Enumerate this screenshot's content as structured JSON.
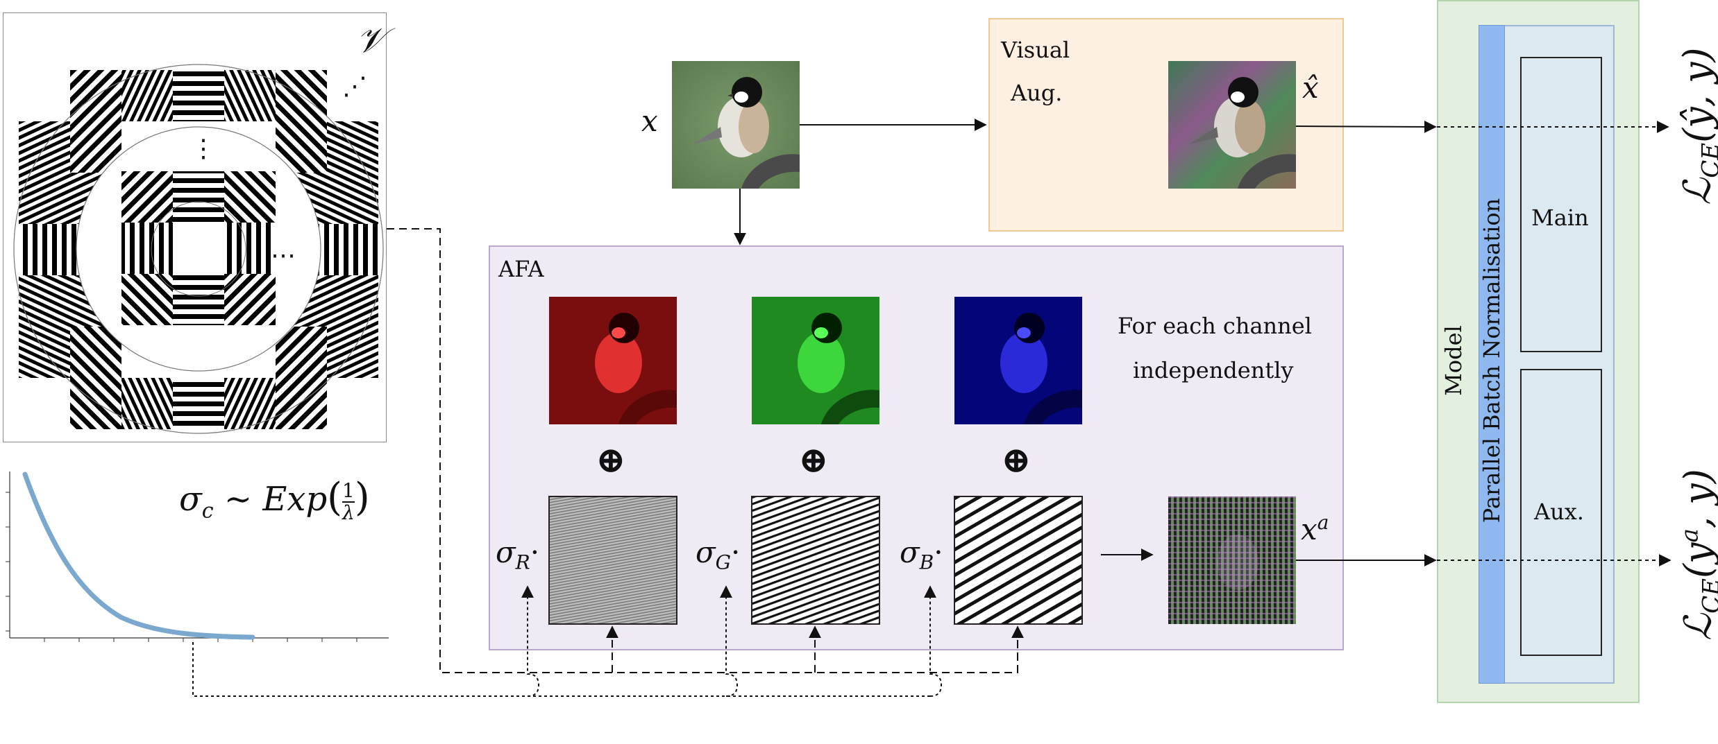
{
  "filter_bank": {
    "symbol": "𝒱",
    "dots_right": "⋯",
    "dots_top": "⋮",
    "dots_corner": "⋰"
  },
  "distribution": {
    "formula_lhs": "σ",
    "formula_sub": "c",
    "formula_tilde": "∼",
    "formula_exp": "Exp",
    "formula_frac_num": "1",
    "formula_frac_den": "λ"
  },
  "input": {
    "label": "x"
  },
  "visual_aug": {
    "title_line1": "Visual",
    "title_line2": "Aug.",
    "output_label": "x̂"
  },
  "afa": {
    "title": "AFA",
    "note_line1": "For each channel",
    "note_line2": "independently",
    "plus_symbol": "⊕",
    "sigma_r": "σ",
    "sub_r": "R",
    "sigma_g": "σ",
    "sub_g": "G",
    "sigma_b": "σ",
    "sub_b": "B",
    "dot": "·",
    "output_label": "x",
    "output_sup": "a"
  },
  "model": {
    "title": "Model",
    "pbn_label": "Parallel Batch Normalisation",
    "main_label": "Main",
    "aux_label": "Aux."
  },
  "losses": {
    "loss_top": "ℒ",
    "loss_top_sub": "CE",
    "loss_top_args": "(ŷ, y)",
    "loss_bottom": "ℒ",
    "loss_bottom_sub": "CE",
    "loss_bottom_args_pre": "(y",
    "loss_bottom_args_sup": "a",
    "loss_bottom_args_post": ", y)"
  },
  "colors": {
    "visual_aug_fill": "#fdf0e3",
    "visual_aug_border": "#f0c890",
    "afa_fill": "#efeaf3",
    "afa_border": "#b9a9cc",
    "model_fill": "#e3efdf",
    "model_border": "#b5d3ac",
    "inner_model_fill": "#dde9f0",
    "pbn_fill": "#8fb8ee",
    "curve": "#7ba8cf"
  }
}
